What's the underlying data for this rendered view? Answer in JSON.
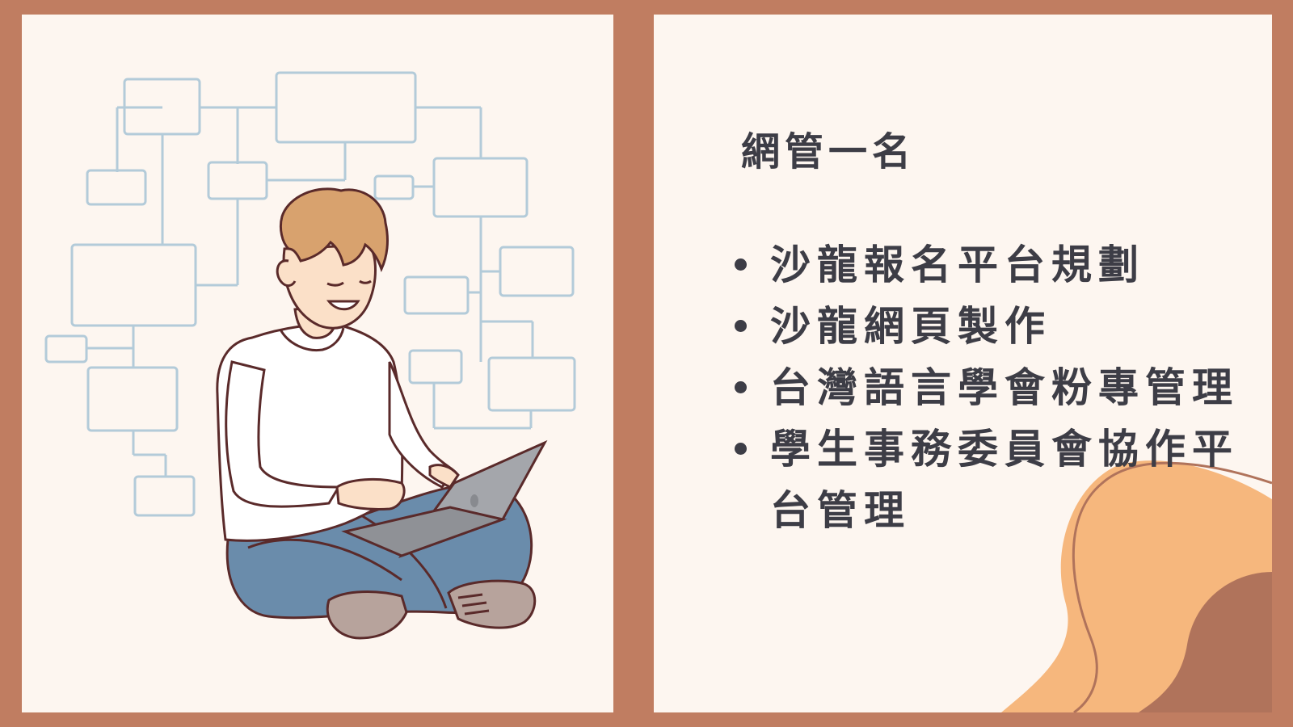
{
  "slide": {
    "heading": "網管一名",
    "items": [
      "沙龍報名平台規劃",
      "沙龍網頁製作",
      "台灣語言學會粉專管理",
      "學生事務委員會協作平台管理"
    ]
  },
  "colors": {
    "background": "#c07d61",
    "panel": "#fdf6f0",
    "text": "#3d3d46",
    "diagram_line": "#b3cbd9",
    "decor_light": "#f6b77d",
    "decor_dark": "#b0735b",
    "sweater": "#ffffff",
    "jeans": "#6a8cab",
    "hair": "#d8a26e",
    "laptop": "#a4a6ab",
    "shoes": "#b7a39c"
  },
  "icons": {
    "bullet": "bullet-dot-icon"
  }
}
